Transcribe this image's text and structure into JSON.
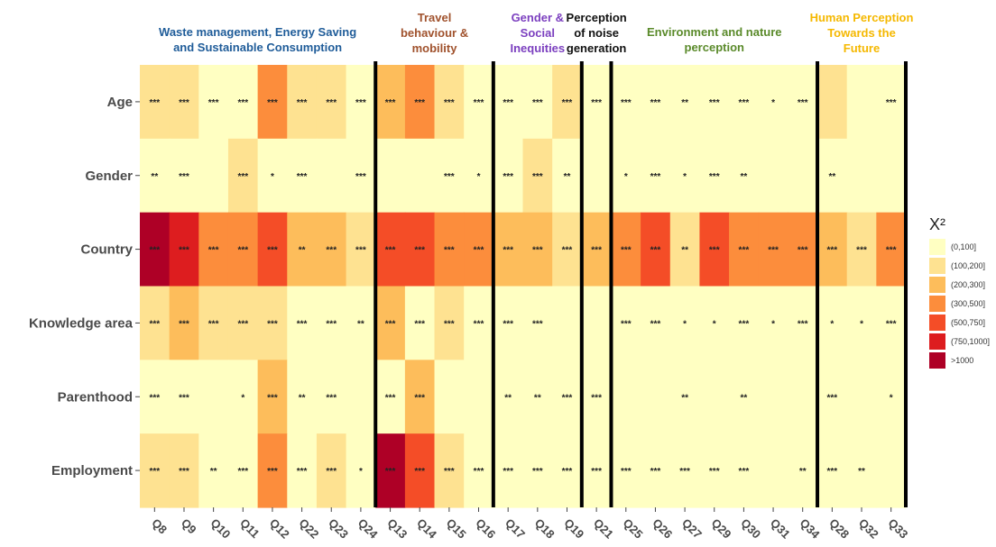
{
  "chart_data": {
    "type": "heatmap",
    "legend_title": "X²",
    "legend_placement": "right",
    "bins": [
      "(0,100]",
      "(100,200]",
      "(200,300]",
      "(300,500]",
      "(500,750]",
      "(750,1000]",
      ">1000"
    ],
    "bin_colors": [
      "#ffffc2",
      "#fee291",
      "#fdbd5b",
      "#fc8d3c",
      "#f44d27",
      "#dd1d1f",
      "#ae0026"
    ],
    "groups": [
      {
        "title": "Waste management, Energy Saving and Sustainable Consumption",
        "color": "#1f5c99",
        "columns": [
          "Q8",
          "Q9",
          "Q10",
          "Q11",
          "Q12",
          "Q22",
          "Q23",
          "Q24"
        ]
      },
      {
        "title": "Travel behaviour & mobility",
        "color": "#a0522d",
        "columns": [
          "Q13",
          "Q14",
          "Q15",
          "Q16"
        ]
      },
      {
        "title": "Gender & Social Inequities",
        "color": "#7b3fbf",
        "columns": [
          "Q17",
          "Q18",
          "Q19"
        ]
      },
      {
        "title": "Perception of noise generation",
        "color": "#111111",
        "columns": [
          "Q21"
        ]
      },
      {
        "title": "Environment and nature perception",
        "color": "#5a8a2a",
        "columns": [
          "Q25",
          "Q26",
          "Q27",
          "Q29",
          "Q30",
          "Q31",
          "Q34"
        ]
      },
      {
        "title": "Human Perception Towards the Future",
        "color": "#f5b800",
        "columns": [
          "Q28",
          "Q32",
          "Q33"
        ]
      }
    ],
    "columns": [
      "Q8",
      "Q9",
      "Q10",
      "Q11",
      "Q12",
      "Q22",
      "Q23",
      "Q24",
      "Q13",
      "Q14",
      "Q15",
      "Q16",
      "Q17",
      "Q18",
      "Q19",
      "Q21",
      "Q25",
      "Q26",
      "Q27",
      "Q29",
      "Q30",
      "Q31",
      "Q34",
      "Q28",
      "Q32",
      "Q33"
    ],
    "rows": [
      "Age",
      "Gender",
      "Country",
      "Knowledge area",
      "Parenthood",
      "Employment"
    ],
    "bin_index": [
      [
        1,
        1,
        0,
        0,
        3,
        1,
        1,
        0,
        2,
        3,
        1,
        0,
        0,
        0,
        1,
        0,
        0,
        0,
        0,
        0,
        0,
        0,
        0,
        1,
        0,
        0
      ],
      [
        0,
        0,
        0,
        1,
        0,
        0,
        0,
        0,
        0,
        0,
        0,
        0,
        0,
        1,
        0,
        0,
        0,
        0,
        0,
        0,
        0,
        0,
        0,
        0,
        0,
        0
      ],
      [
        6,
        5,
        3,
        3,
        4,
        2,
        2,
        1,
        4,
        4,
        3,
        3,
        2,
        2,
        1,
        2,
        3,
        4,
        1,
        4,
        3,
        3,
        3,
        2,
        1,
        3
      ],
      [
        1,
        2,
        1,
        1,
        1,
        0,
        0,
        0,
        2,
        0,
        1,
        0,
        0,
        0,
        0,
        0,
        0,
        0,
        0,
        0,
        0,
        0,
        0,
        0,
        0,
        0
      ],
      [
        0,
        0,
        0,
        0,
        2,
        0,
        0,
        0,
        0,
        2,
        0,
        0,
        0,
        0,
        0,
        0,
        0,
        0,
        0,
        0,
        0,
        0,
        0,
        0,
        0,
        0
      ],
      [
        1,
        1,
        0,
        0,
        3,
        0,
        1,
        0,
        6,
        4,
        1,
        0,
        0,
        0,
        0,
        0,
        0,
        0,
        0,
        0,
        0,
        0,
        0,
        0,
        0,
        0
      ]
    ],
    "significance": [
      [
        "***",
        "***",
        "***",
        "***",
        "***",
        "***",
        "***",
        "***",
        "***",
        "***",
        "***",
        "***",
        "***",
        "***",
        "***",
        "***",
        "***",
        "***",
        "**",
        "***",
        "***",
        "*",
        "***",
        "",
        "",
        "***"
      ],
      [
        "**",
        "***",
        "",
        "***",
        "*",
        "***",
        "",
        "***",
        "",
        "",
        "***",
        "*",
        "***",
        "***",
        "**",
        "",
        "*",
        "***",
        "*",
        "***",
        "**",
        "",
        "",
        "**",
        "",
        ""
      ],
      [
        "***",
        "***",
        "***",
        "***",
        "***",
        "**",
        "***",
        "***",
        "***",
        "***",
        "***",
        "***",
        "***",
        "***",
        "***",
        "***",
        "***",
        "***",
        "**",
        "***",
        "***",
        "***",
        "***",
        "***",
        "***",
        "***"
      ],
      [
        "***",
        "***",
        "***",
        "***",
        "***",
        "***",
        "***",
        "**",
        "***",
        "***",
        "***",
        "***",
        "***",
        "***",
        "",
        "",
        "***",
        "***",
        "*",
        "*",
        "***",
        "*",
        "***",
        "*",
        "*",
        "***"
      ],
      [
        "***",
        "***",
        "",
        "*",
        "***",
        "**",
        "***",
        "",
        "***",
        "***",
        "",
        "",
        "**",
        "**",
        "***",
        "***",
        "",
        "",
        "**",
        "",
        "**",
        "",
        "",
        "***",
        "",
        "*"
      ],
      [
        "***",
        "***",
        "**",
        "***",
        "***",
        "***",
        "***",
        "*",
        "***",
        "***",
        "***",
        "***",
        "***",
        "***",
        "***",
        "***",
        "***",
        "***",
        "***",
        "***",
        "***",
        "",
        "**",
        "***",
        "**",
        ""
      ]
    ]
  }
}
